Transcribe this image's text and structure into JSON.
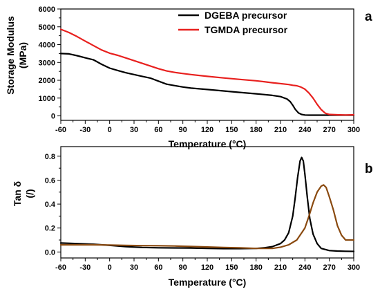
{
  "chart_data": [
    {
      "type": "line",
      "panel_label": "a",
      "xlabel": "Temperature (°C)",
      "ylabel": "Storage Modulus",
      "ylabel_unit": "(MPa)",
      "xlim": [
        -60,
        300
      ],
      "ylim": [
        -250,
        6000
      ],
      "xticks": [
        -60,
        -30,
        0,
        30,
        60,
        90,
        120,
        150,
        180,
        210,
        240,
        270,
        300
      ],
      "yticks": [
        0,
        1000,
        2000,
        3000,
        4000,
        5000,
        6000
      ],
      "legend_position": "top-right",
      "series": [
        {
          "name": "DGEBA precursor",
          "color": "#000000",
          "x": [
            -60,
            -50,
            -40,
            -30,
            -20,
            -10,
            0,
            10,
            20,
            30,
            40,
            50,
            60,
            70,
            80,
            90,
            100,
            120,
            140,
            160,
            180,
            200,
            210,
            218,
            222,
            225,
            228,
            232,
            236,
            240,
            245,
            250,
            260,
            270,
            280,
            290,
            300
          ],
          "y": [
            3500,
            3480,
            3380,
            3260,
            3150,
            2900,
            2680,
            2550,
            2420,
            2320,
            2220,
            2120,
            1950,
            1780,
            1700,
            1620,
            1560,
            1480,
            1400,
            1320,
            1240,
            1150,
            1080,
            950,
            800,
            600,
            380,
            170,
            80,
            50,
            40,
            40,
            40,
            40,
            40,
            40,
            40
          ]
        },
        {
          "name": "TGMDA precursor",
          "color": "#e8201e",
          "x": [
            -60,
            -50,
            -40,
            -30,
            -20,
            -10,
            0,
            10,
            20,
            30,
            40,
            50,
            60,
            70,
            80,
            90,
            100,
            120,
            140,
            160,
            180,
            200,
            220,
            225,
            230,
            235,
            240,
            245,
            250,
            255,
            260,
            265,
            270,
            280,
            290,
            300
          ],
          "y": [
            4860,
            4680,
            4450,
            4200,
            3950,
            3700,
            3520,
            3400,
            3250,
            3100,
            2950,
            2800,
            2650,
            2520,
            2440,
            2380,
            2320,
            2220,
            2130,
            2050,
            1970,
            1860,
            1760,
            1720,
            1690,
            1620,
            1500,
            1280,
            1000,
            650,
            350,
            150,
            80,
            60,
            50,
            60
          ]
        }
      ]
    },
    {
      "type": "line",
      "panel_label": "b",
      "xlabel": "Temperature (°C)",
      "ylabel": "Tan δ",
      "ylabel_unit": "(/)",
      "xlim": [
        -60,
        300
      ],
      "ylim": [
        -0.05,
        0.88
      ],
      "xticks": [
        -60,
        -30,
        0,
        30,
        60,
        90,
        120,
        150,
        180,
        210,
        240,
        270,
        300
      ],
      "yticks": [
        0.0,
        0.2,
        0.4,
        0.6,
        0.8
      ],
      "series": [
        {
          "name": "DGEBA precursor",
          "color": "#000000",
          "x": [
            -60,
            -40,
            -20,
            0,
            20,
            40,
            60,
            80,
            100,
            120,
            140,
            160,
            180,
            190,
            200,
            210,
            215,
            220,
            225,
            228,
            231,
            234,
            236,
            238,
            240,
            243,
            246,
            250,
            255,
            260,
            270,
            280,
            290,
            300
          ],
          "y": [
            0.075,
            0.07,
            0.065,
            0.055,
            0.045,
            0.038,
            0.035,
            0.034,
            0.033,
            0.03,
            0.028,
            0.028,
            0.03,
            0.035,
            0.045,
            0.07,
            0.1,
            0.16,
            0.3,
            0.45,
            0.62,
            0.76,
            0.79,
            0.76,
            0.65,
            0.45,
            0.28,
            0.15,
            0.07,
            0.03,
            0.012,
            0.008,
            0.006,
            0.005
          ]
        },
        {
          "name": "TGMDA precursor",
          "color": "#8a4a10",
          "x": [
            -60,
            -40,
            -20,
            0,
            20,
            40,
            60,
            80,
            100,
            120,
            140,
            160,
            180,
            200,
            210,
            220,
            230,
            240,
            245,
            250,
            255,
            260,
            263,
            266,
            270,
            275,
            280,
            285,
            290,
            295,
            300
          ],
          "y": [
            0.06,
            0.06,
            0.06,
            0.058,
            0.055,
            0.053,
            0.052,
            0.05,
            0.046,
            0.042,
            0.038,
            0.035,
            0.03,
            0.03,
            0.04,
            0.06,
            0.1,
            0.2,
            0.3,
            0.41,
            0.5,
            0.55,
            0.56,
            0.54,
            0.46,
            0.35,
            0.22,
            0.14,
            0.1,
            0.1,
            0.1
          ]
        }
      ]
    }
  ]
}
